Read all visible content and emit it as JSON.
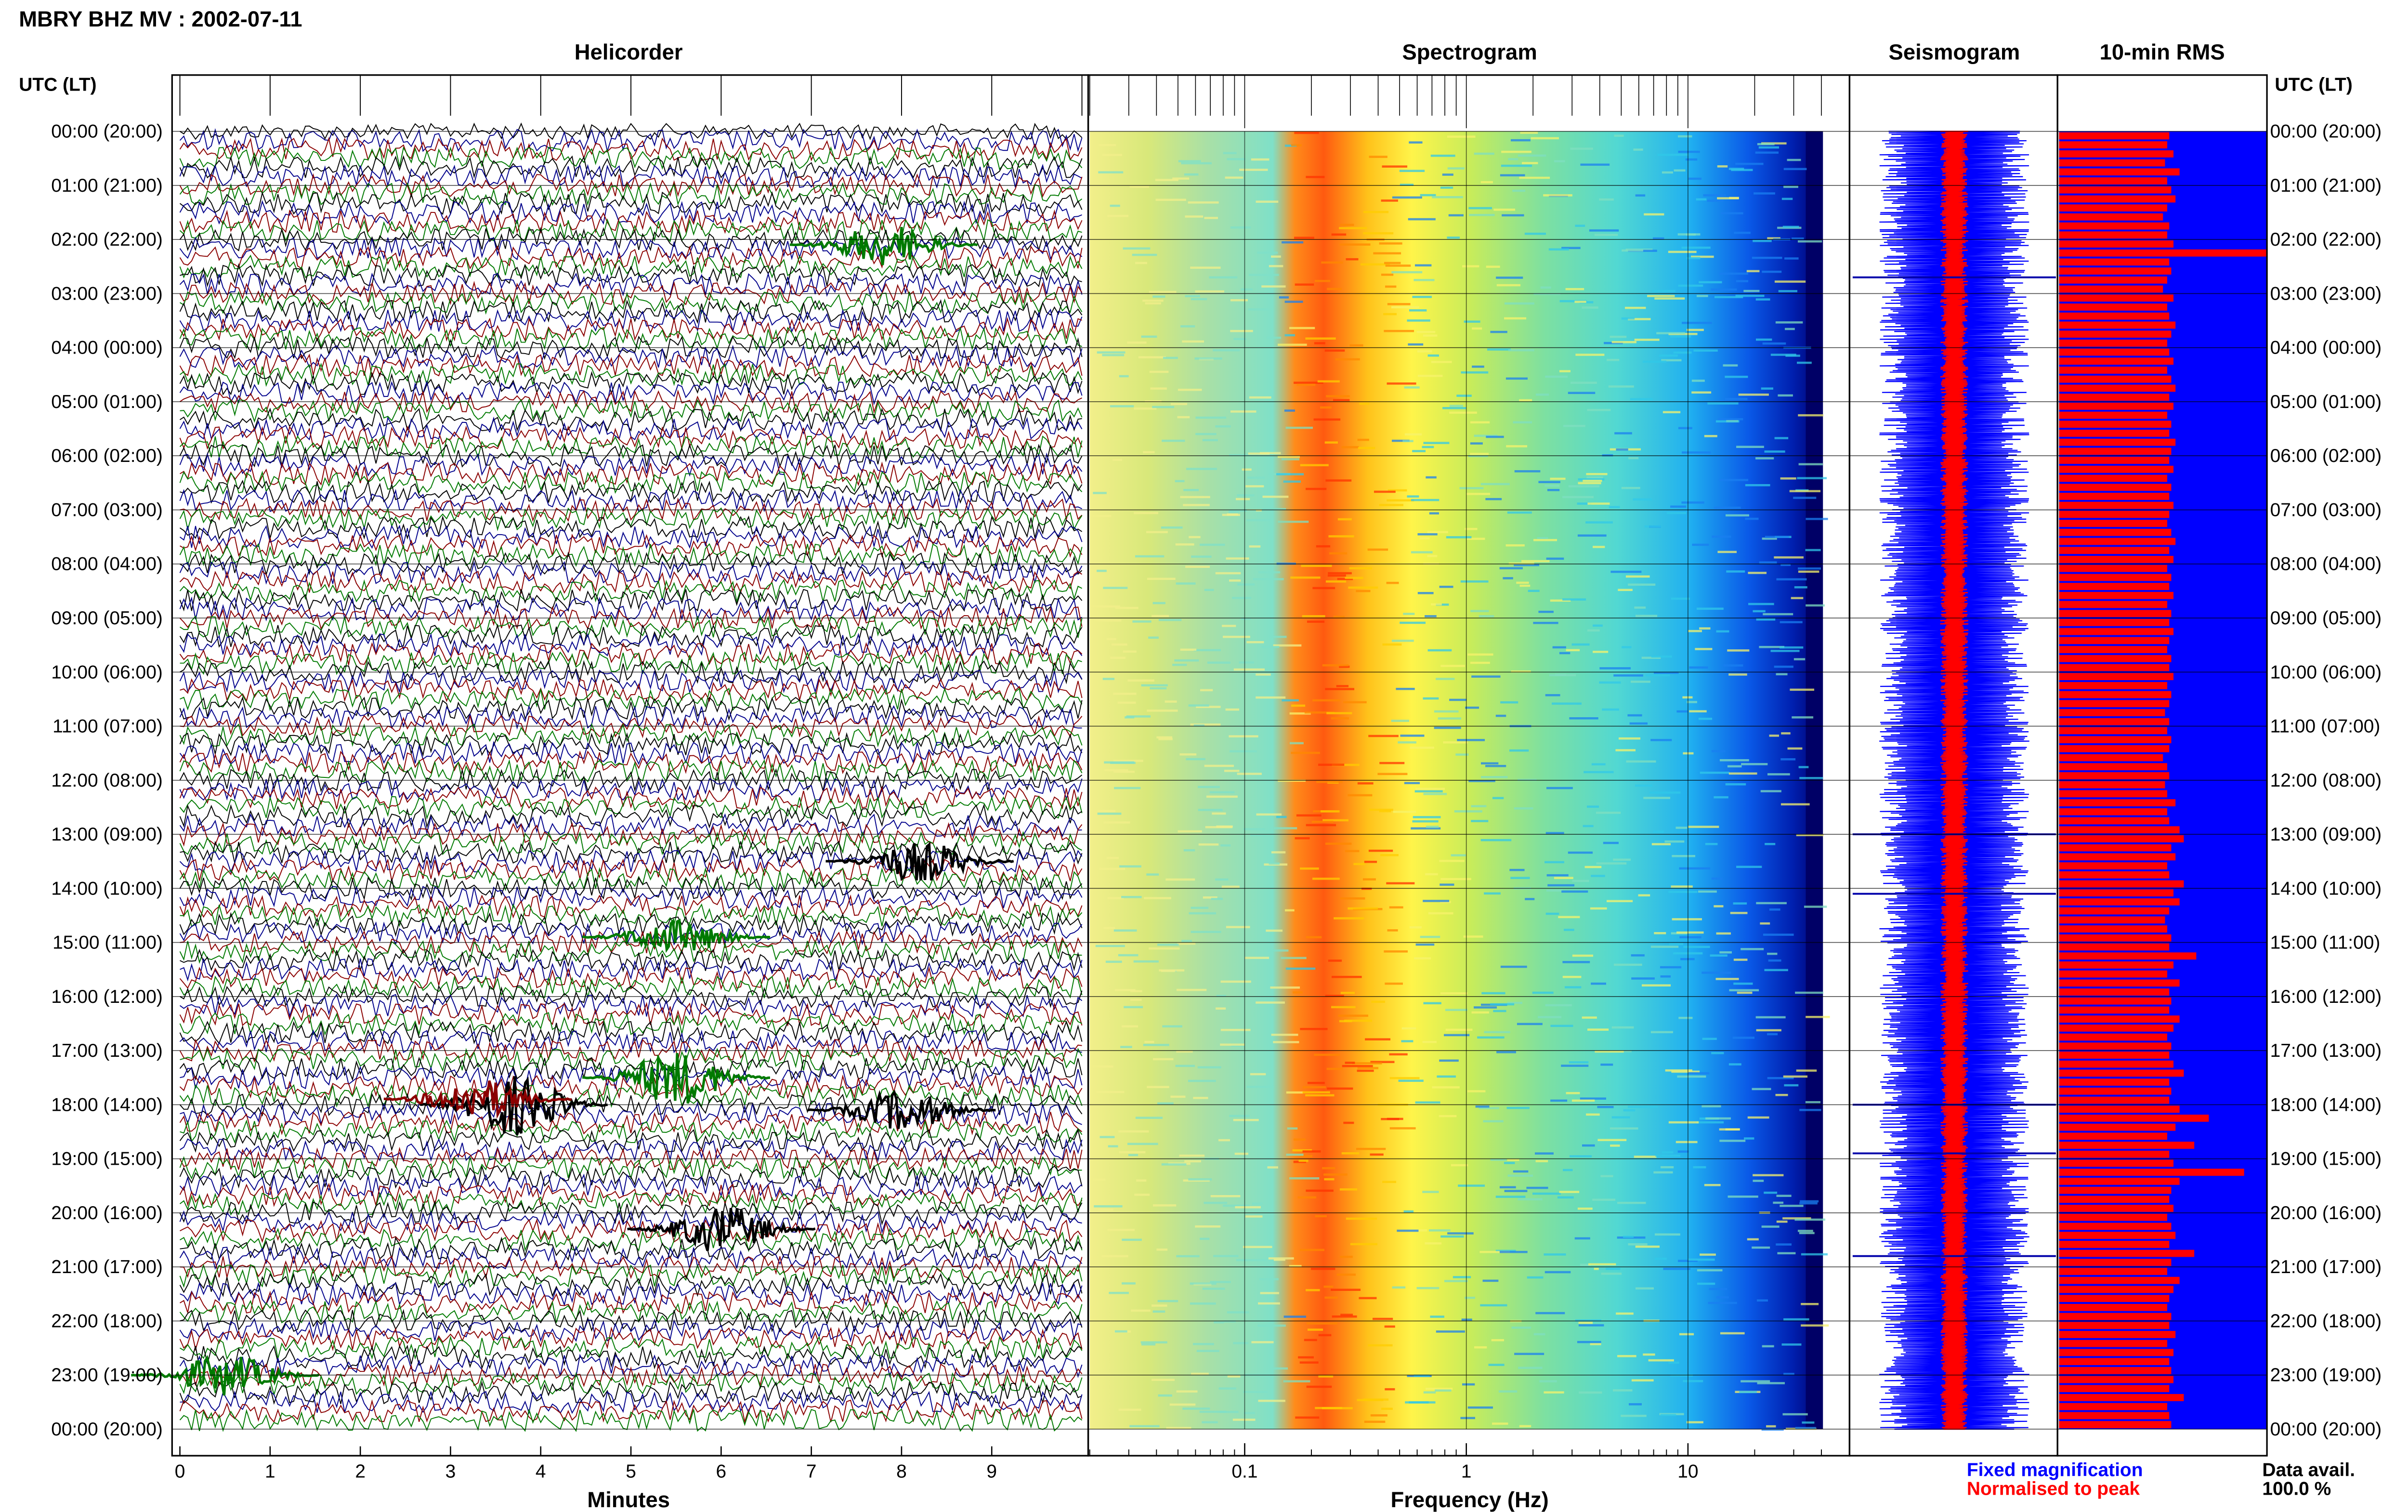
{
  "header": {
    "station_title": "MBRY BHZ MV : 2002-07-11"
  },
  "panels": {
    "helicorder_title": "Helicorder",
    "spectrogram_title": "Spectrogram",
    "seismogram_title": "Seismogram",
    "rms_title": "10-min RMS"
  },
  "axes": {
    "left_time_label": "UTC (LT)",
    "right_time_label": "UTC (LT)",
    "helicorder_xlabel": "Minutes",
    "spectrogram_xlabel": "Frequency (Hz)"
  },
  "legend": {
    "fixed_label": "Fixed magnification",
    "normalised_label": "Normalised to peak",
    "fixed_color": "#0000ff",
    "normalised_color": "#ff0000"
  },
  "availability": {
    "label": "Data avail.",
    "value": "100.0 %"
  },
  "colors": {
    "trace_cycle": [
      "#000000",
      "#00008b",
      "#8b0000",
      "#007a00"
    ],
    "spectrogram_scale": [
      "#00007f",
      "#0000ff",
      "#00bfff",
      "#40e0d0",
      "#9acd32",
      "#ffff00",
      "#ffa500",
      "#ff0000"
    ],
    "rms_bar": "#ff0000",
    "rms_background": "#0000ff"
  },
  "chart_data": [
    {
      "type": "line",
      "name": "helicorder",
      "xlabel": "Minutes",
      "ylabel": "UTC (LT)",
      "xlim": [
        0,
        10
      ],
      "x_ticks": [
        0,
        1,
        2,
        3,
        4,
        5,
        6,
        7,
        8,
        9
      ],
      "y_ticks": [
        "00:00 (20:00)",
        "01:00 (21:00)",
        "02:00 (22:00)",
        "03:00 (23:00)",
        "04:00 (00:00)",
        "05:00 (01:00)",
        "06:00 (02:00)",
        "07:00 (03:00)",
        "08:00 (04:00)",
        "09:00 (05:00)",
        "10:00 (06:00)",
        "11:00 (07:00)",
        "12:00 (08:00)",
        "13:00 (09:00)",
        "14:00 (10:00)",
        "15:00 (11:00)",
        "16:00 (12:00)",
        "17:00 (13:00)",
        "18:00 (14:00)",
        "19:00 (15:00)",
        "20:00 (16:00)",
        "21:00 (17:00)",
        "22:00 (18:00)",
        "23:00 (19:00)",
        "00:00 (20:00)"
      ],
      "lines_per_hour": 6,
      "total_lines": 144
    },
    {
      "type": "heatmap",
      "name": "spectrogram",
      "xlabel": "Frequency (Hz)",
      "x_scale": "log",
      "xlim": [
        0.02,
        40
      ],
      "x_ticks": [
        0.1,
        1,
        10
      ],
      "dominant_band_hz": [
        0.2,
        0.6
      ]
    },
    {
      "type": "line",
      "name": "seismogram",
      "series": [
        {
          "name": "Fixed magnification",
          "color": "#0000ff"
        },
        {
          "name": "Normalised to peak",
          "color": "#ff0000"
        }
      ]
    },
    {
      "type": "bar",
      "name": "10-min RMS",
      "orientation": "horizontal",
      "bins": 144,
      "values_relative": [
        0.53,
        0.52,
        0.55,
        0.51,
        0.58,
        0.52,
        0.54,
        0.56,
        0.52,
        0.5,
        0.53,
        0.52,
        0.55,
        1.0,
        0.53,
        0.54,
        0.52,
        0.5,
        0.55,
        0.52,
        0.53,
        0.56,
        0.54,
        0.52,
        0.53,
        0.55,
        0.52,
        0.54,
        0.56,
        0.53,
        0.55,
        0.52,
        0.54,
        0.53,
        0.56,
        0.54,
        0.53,
        0.55,
        0.52,
        0.54,
        0.53,
        0.55,
        0.53,
        0.52,
        0.54,
        0.56,
        0.53,
        0.55,
        0.52,
        0.54,
        0.53,
        0.55,
        0.52,
        0.54,
        0.53,
        0.55,
        0.53,
        0.52,
        0.54,
        0.53,
        0.55,
        0.52,
        0.54,
        0.53,
        0.51,
        0.53,
        0.52,
        0.54,
        0.53,
        0.5,
        0.52,
        0.53,
        0.51,
        0.52,
        0.56,
        0.52,
        0.53,
        0.58,
        0.6,
        0.54,
        0.56,
        0.52,
        0.53,
        0.6,
        0.55,
        0.58,
        0.53,
        0.51,
        0.52,
        0.54,
        0.53,
        0.66,
        0.55,
        0.52,
        0.58,
        0.53,
        0.54,
        0.53,
        0.58,
        0.55,
        0.52,
        0.54,
        0.53,
        0.55,
        0.6,
        0.53,
        0.54,
        0.53,
        0.58,
        0.72,
        0.56,
        0.52,
        0.65,
        0.53,
        0.55,
        0.89,
        0.58,
        0.54,
        0.53,
        0.55,
        0.52,
        0.54,
        0.56,
        0.53,
        0.65,
        0.54,
        0.52,
        0.58,
        0.55,
        0.53,
        0.52,
        0.54,
        0.53,
        0.56,
        0.52,
        0.55,
        0.53,
        0.54,
        0.55,
        0.53,
        0.6,
        0.52,
        0.53,
        0.54
      ]
    }
  ]
}
